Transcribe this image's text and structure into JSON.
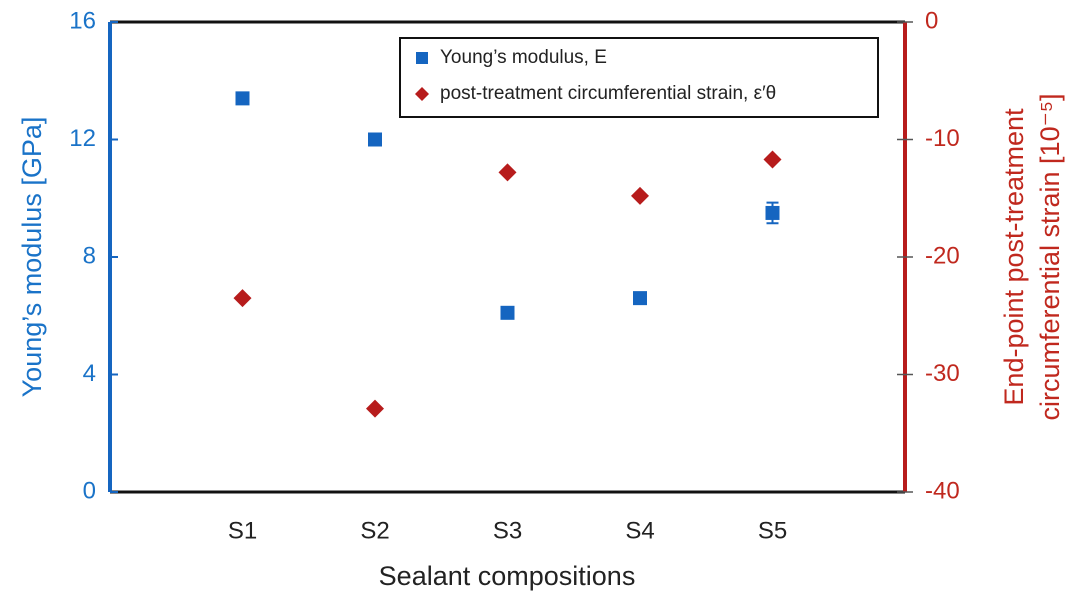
{
  "chart_data": {
    "type": "scatter",
    "categories": [
      "S1",
      "S2",
      "S3",
      "S4",
      "S5"
    ],
    "xlabel": "Sealant compositions",
    "ylabel": "Young’s modulus [GPa]",
    "y2label": [
      "End-point post-treatment",
      "circumferential strain [10⁻⁵]"
    ],
    "ylim": [
      0,
      16
    ],
    "yticks": [
      0,
      4,
      8,
      12,
      16
    ],
    "y2lim": [
      -40,
      0
    ],
    "y2ticks": [
      -40,
      -30,
      -20,
      -10,
      0
    ],
    "legend": "top-right",
    "series": [
      {
        "name": "Young’s modulus, E",
        "color": "#1565c0",
        "marker": "square",
        "values": [
          13.4,
          12.0,
          6.1,
          6.6,
          9.5
        ],
        "errors": [
          0.1,
          0.15,
          0.1,
          0.1,
          0.35
        ]
      },
      {
        "name": "post-treatment circumferential strain, ε′θ",
        "color": "#b71c1c",
        "marker": "diamond",
        "axis": "y2",
        "values": [
          -23.5,
          -32.9,
          -12.8,
          -14.8,
          -11.7
        ]
      }
    ]
  }
}
